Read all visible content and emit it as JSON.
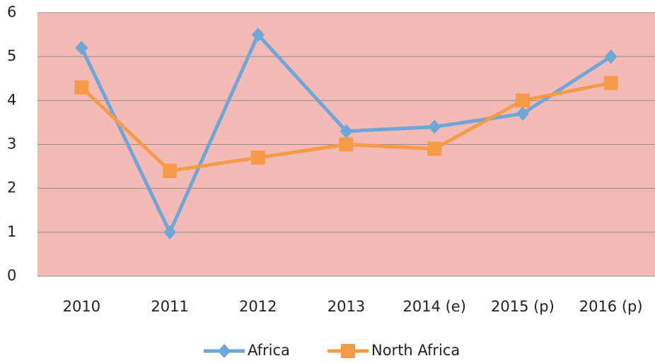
{
  "chart_data": {
    "type": "line",
    "categories": [
      "2010",
      "2011",
      "2012",
      "2013",
      "2014 (e)",
      "2015 (p)",
      "2016 (p)"
    ],
    "series": [
      {
        "name": "Africa",
        "color": "#6ea6d8",
        "marker": "diamond",
        "values": [
          5.2,
          1.0,
          5.5,
          3.3,
          3.4,
          3.7,
          5.0
        ]
      },
      {
        "name": "North Africa",
        "color": "#f59a47",
        "marker": "square",
        "values": [
          4.3,
          2.4,
          2.7,
          3.0,
          2.9,
          4.0,
          4.4
        ]
      }
    ],
    "ylim": [
      0,
      6
    ],
    "yticks": [
      0,
      1,
      2,
      3,
      4,
      5,
      6
    ],
    "grid": true,
    "plot_background": "#f4bab6",
    "legend": "bottom"
  }
}
